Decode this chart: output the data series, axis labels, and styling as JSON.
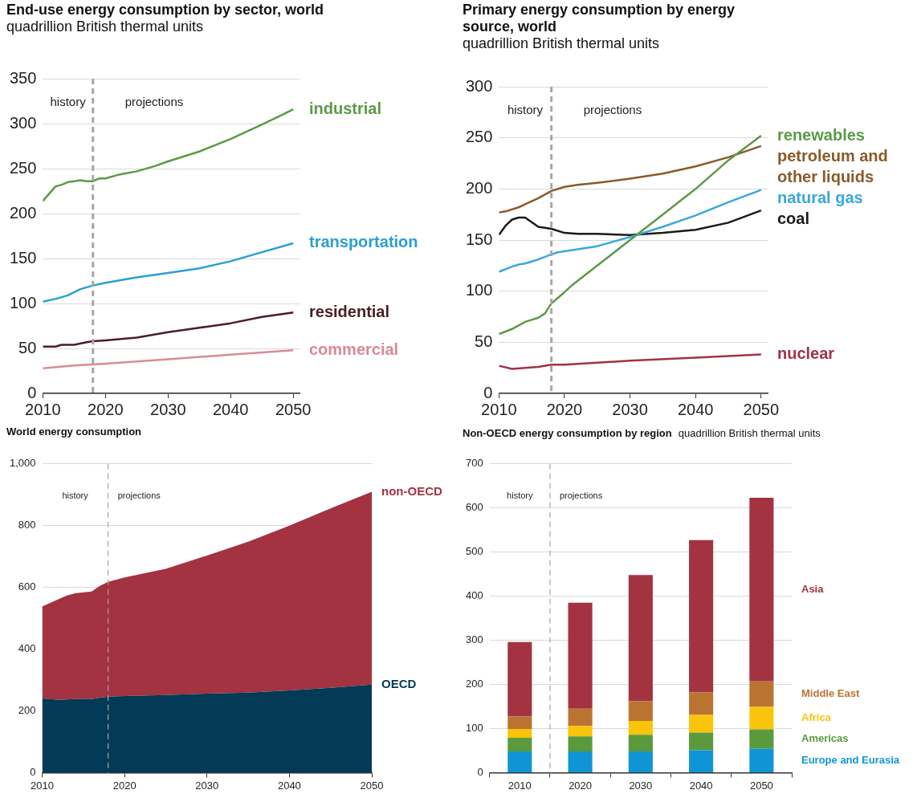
{
  "chart_data": [
    {
      "type": "line",
      "title": "End-use energy consumption by sector, world",
      "subtitle": "quadrillion British thermal units",
      "xlim": [
        2010,
        2051
      ],
      "xticks": [
        2010,
        2020,
        2030,
        2040,
        2050
      ],
      "ylim": [
        0,
        350
      ],
      "yticks": [
        0,
        50,
        100,
        150,
        200,
        250,
        300,
        350
      ],
      "grid": "y",
      "ref_lines": [
        {
          "axis": "x",
          "value": 2018,
          "line_style": "dashed",
          "color": "#a6a6a6"
        }
      ],
      "annotations": [
        "history",
        "projections"
      ],
      "series": [
        {
          "name": "industrial",
          "color": "#5b9a45",
          "x": [
            2010,
            2012,
            2013,
            2014,
            2015,
            2016,
            2017,
            2018,
            2019,
            2020,
            2022,
            2025,
            2028,
            2030,
            2035,
            2040,
            2045,
            2048,
            2050
          ],
          "values": [
            214,
            230,
            232,
            235,
            236,
            237,
            236,
            236,
            239,
            239,
            243,
            247,
            253,
            258,
            269,
            283,
            299,
            309,
            316
          ]
        },
        {
          "name": "transportation",
          "color": "#2a9fd0",
          "x": [
            2010,
            2012,
            2014,
            2016,
            2018,
            2020,
            2025,
            2030,
            2035,
            2040,
            2045,
            2050
          ],
          "values": [
            102,
            105,
            109,
            116,
            120,
            123,
            129,
            134,
            139,
            147,
            157,
            167
          ]
        },
        {
          "name": "residential",
          "color": "#4a1d24",
          "x": [
            2010,
            2012,
            2013,
            2015,
            2017,
            2018,
            2020,
            2025,
            2030,
            2035,
            2040,
            2045,
            2050
          ],
          "values": [
            52,
            52,
            54,
            54,
            57,
            58,
            59,
            62,
            68,
            73,
            78,
            85,
            90
          ]
        },
        {
          "name": "commercial",
          "color": "#d98a96",
          "x": [
            2010,
            2015,
            2020,
            2030,
            2040,
            2050
          ],
          "values": [
            28,
            31,
            33,
            38,
            43,
            48
          ]
        }
      ]
    },
    {
      "type": "line",
      "title": "Primary energy consumption by energy source, world",
      "subtitle": "quadrillion British thermal units",
      "xlim": [
        2010,
        2051
      ],
      "xticks": [
        2010,
        2020,
        2030,
        2040,
        2050
      ],
      "ylim": [
        0,
        300
      ],
      "yticks": [
        0,
        50,
        100,
        150,
        200,
        250,
        300
      ],
      "grid": "y",
      "ref_lines": [
        {
          "axis": "x",
          "value": 2018,
          "line_style": "dashed",
          "color": "#a6a6a6"
        }
      ],
      "annotations": [
        "history",
        "projections"
      ],
      "series": [
        {
          "name": "renewables",
          "color": "#5b9a45",
          "x": [
            2010,
            2012,
            2014,
            2015,
            2016,
            2017,
            2018,
            2020,
            2021,
            2025,
            2030,
            2035,
            2040,
            2045,
            2050
          ],
          "values": [
            58,
            63,
            70,
            72,
            74,
            78,
            88,
            99,
            105,
            125,
            150,
            175,
            200,
            228,
            252
          ]
        },
        {
          "name": "petroleum and other liquids",
          "color": "#8a5a2b",
          "x": [
            2010,
            2011,
            2013,
            2014,
            2016,
            2018,
            2020,
            2022,
            2025,
            2030,
            2035,
            2040,
            2045,
            2050
          ],
          "values": [
            177,
            178,
            182,
            185,
            191,
            198,
            202,
            204,
            206,
            210,
            215,
            222,
            231,
            242
          ]
        },
        {
          "name": "natural gas",
          "color": "#3aa7dc",
          "x": [
            2010,
            2012,
            2013,
            2014,
            2016,
            2018,
            2019,
            2020,
            2025,
            2030,
            2035,
            2040,
            2045,
            2050
          ],
          "values": [
            119,
            124,
            126,
            127,
            131,
            136,
            138,
            139,
            144,
            153,
            163,
            174,
            187,
            199
          ]
        },
        {
          "name": "coal",
          "color": "#1a1a1a",
          "x": [
            2010,
            2011,
            2012,
            2013,
            2014,
            2016,
            2018,
            2020,
            2022,
            2025,
            2030,
            2035,
            2040,
            2045,
            2050
          ],
          "values": [
            155,
            164,
            170,
            172,
            172,
            163,
            161,
            157,
            156,
            156,
            155,
            157,
            160,
            167,
            179
          ]
        },
        {
          "name": "nuclear",
          "color": "#a03247",
          "x": [
            2010,
            2012,
            2014,
            2016,
            2018,
            2020,
            2025,
            2030,
            2040,
            2050
          ],
          "values": [
            27,
            24,
            25,
            26,
            28,
            28,
            30,
            32,
            35,
            38
          ]
        }
      ]
    },
    {
      "type": "area",
      "title": "World energy consumption",
      "stacked": true,
      "xlim": [
        2010,
        2050
      ],
      "xticks": [
        2010,
        2020,
        2030,
        2040,
        2050
      ],
      "ylim": [
        0,
        1000
      ],
      "yticks": [
        0,
        200,
        400,
        600,
        800,
        {
          "value": 1000,
          "label": "1,000"
        }
      ],
      "grid": "y",
      "ref_lines": [
        {
          "axis": "x",
          "value": 2018,
          "line_style": "dashed",
          "color": "#a6a6a6"
        }
      ],
      "annotations": [
        "history",
        "projections"
      ],
      "x": [
        2010,
        2012,
        2013,
        2014,
        2016,
        2017,
        2018,
        2020,
        2025,
        2030,
        2035,
        2040,
        2045,
        2050
      ],
      "series": [
        {
          "name": "OECD",
          "color": "#033a56",
          "values": [
            240,
            236,
            237,
            238,
            238,
            243,
            246,
            248,
            251,
            256,
            259,
            266,
            275,
            285
          ]
        },
        {
          "name": "non-OECD",
          "color": "#a33341",
          "values": [
            298,
            326,
            337,
            343,
            349,
            362,
            372,
            384,
            409,
            447,
            489,
            534,
            581,
            625
          ]
        }
      ]
    },
    {
      "type": "bar",
      "title": "Non-OECD energy consumption by region",
      "subtitle": "quadrillion British thermal units",
      "stacked": true,
      "xlim": [
        2005,
        2055
      ],
      "xticks": [
        2010,
        2020,
        2030,
        2040,
        2050
      ],
      "ylim": [
        0,
        700
      ],
      "yticks": [
        0,
        100,
        200,
        300,
        400,
        500,
        600,
        700
      ],
      "grid": "y",
      "ref_lines": [
        {
          "axis": "x",
          "value": 2015,
          "line_style": "dashed",
          "color": "#a6a6a6"
        }
      ],
      "annotations": [
        "history",
        "projections"
      ],
      "x": [
        2010,
        2020,
        2030,
        2040,
        2050
      ],
      "series": [
        {
          "name": "Europe and Eurasia",
          "color": "#0f95d6",
          "values": [
            48,
            48,
            48,
            51,
            54
          ]
        },
        {
          "name": "Americas",
          "color": "#5a9a3d",
          "values": [
            31,
            34,
            38,
            40,
            44
          ]
        },
        {
          "name": "Africa",
          "color": "#f9c40a",
          "values": [
            20,
            24,
            31,
            40,
            51
          ]
        },
        {
          "name": "Middle East",
          "color": "#bb7331",
          "values": [
            28,
            39,
            45,
            51,
            58
          ]
        },
        {
          "name": "Asia",
          "color": "#a33341",
          "values": [
            169,
            240,
            286,
            345,
            416
          ]
        }
      ]
    }
  ]
}
